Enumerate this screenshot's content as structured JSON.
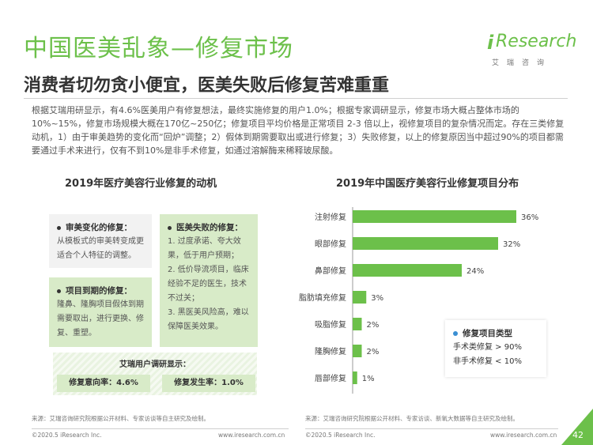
{
  "header": {
    "title": "中国医美乱象—修复市场",
    "subtitle": "消费者切勿贪小便宜，医美失败后修复苦难重重",
    "logo_word": "Research",
    "logo_i": "i",
    "logo_sub": "艾瑞咨询"
  },
  "body_text": "根据艾瑞用研显示，有4.6%医美用户有修复想法，最终实施修复的用户1.0%；根据专家调研显示，修复市场大概占整体市场的10%~15%，修复市场规模大概在170亿~250亿；修复项目平均价格是正常项目 2-3 倍以上，视修复项目的复杂情况而定。存在三类修复动机，1）由于审美趋势的变化而“回炉”调整；2）假体到期需要取出或进行修复；3）失败修复，以上的修复原因当中超过90%的项目都需要通过手术来进行，仅有不到10%是非手术修复，如通过溶解酶来稀释玻尿酸。",
  "left": {
    "title": "2019年医疗美容行业修复的动机",
    "box1": {
      "head": "审美变化的修复：",
      "text": "从模板式的审美转变成更适合个人特征的调整。"
    },
    "box2": {
      "head": "项目到期的修复：",
      "text": "隆鼻、隆胸项目假体到期需要取出，进行更换、修复、重塑。"
    },
    "box3": {
      "head": "医美失败的修复：",
      "lines": [
        "1. 过度承诺、夸大效果，低于用户预期；",
        "2. 低价导流项目，临床经验不足的医生，技术不过关；",
        "3. 黑医美风险高，难以保障医美效果。"
      ]
    },
    "survey": {
      "title": "艾瑞用户调研显示：",
      "intent": "修复意向率：4.6%",
      "rate": "修复发生率：1.0%"
    }
  },
  "right": {
    "title": "2019年中国医疗美容行业修复项目分布",
    "legend": {
      "title": "修复项目类型",
      "item1": "手术类修复 > 90%",
      "item2": "非手术修复 < 10%"
    }
  },
  "chart_data": {
    "type": "bar",
    "orientation": "horizontal",
    "title": "2019年中国医疗美容行业修复项目分布",
    "categories": [
      "注射修复",
      "眼部修复",
      "鼻部修复",
      "脂肪填充修复",
      "吸脂修复",
      "隆胸修复",
      "唇部修复"
    ],
    "values": [
      36,
      32,
      24,
      3,
      2,
      2,
      1
    ],
    "value_labels": [
      "36%",
      "32%",
      "24%",
      "3%",
      "2%",
      "2%",
      "1%"
    ],
    "unit": "%",
    "xlim": [
      0,
      40
    ],
    "bar_color": "#6cc04a",
    "grid": false
  },
  "footer": {
    "source_left": "来源：艾瑞咨询研究院根据公开材料、专家访谈等自主研究及绘制。",
    "source_right": "来源：艾瑞咨询研究院根据公开材料、专家访谈、新氧大数据等自主研究及绘制。",
    "copyright": "©2020.5 iResearch Inc.",
    "url": "www.iresearch.com.cn",
    "page": "42"
  },
  "colors": {
    "accent": "#6cc04a",
    "legend_dot": "#3a8fd3"
  }
}
